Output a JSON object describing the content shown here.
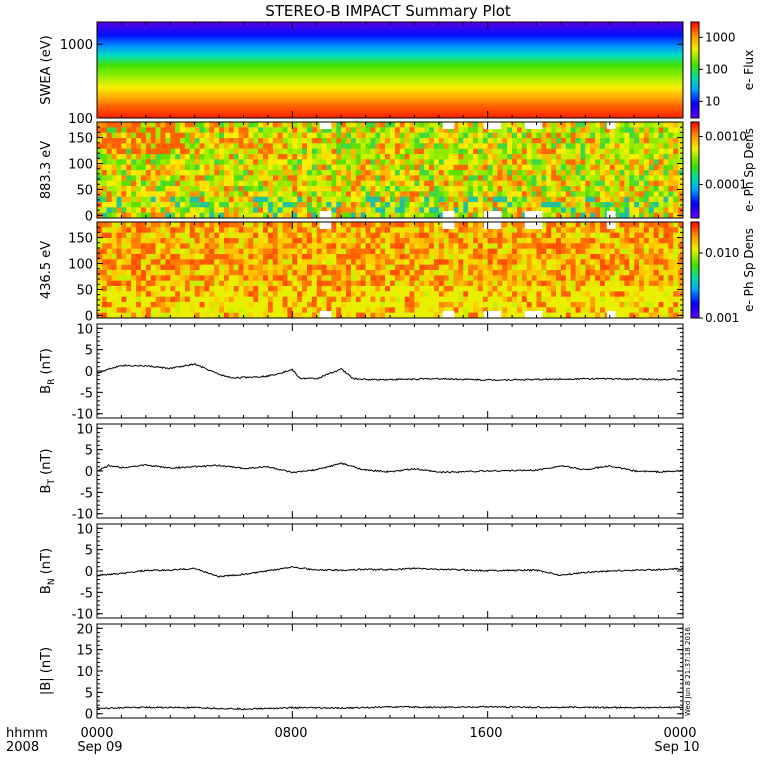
{
  "title": "STEREO-B IMPACT Summary Plot",
  "timestamp": "Wed Jun  8 21:37:18 2016",
  "footer": {
    "hhmm": "hhmm",
    "year": "2008",
    "xticks": [
      "0000",
      "0800",
      "1600",
      "0000"
    ],
    "dates": [
      "Sep 09",
      "Sep 10"
    ]
  },
  "chart_data": [
    {
      "type": "heatmap",
      "ylabel": "SWEA (eV)",
      "yscale": "log",
      "ylim": [
        100,
        2000
      ],
      "yticks": [
        "1000",
        "100"
      ],
      "colorbar": {
        "label": "e- Flux",
        "scale": "log",
        "range": [
          3,
          3000
        ],
        "ticks": [
          "1000",
          "100",
          "10"
        ]
      }
    },
    {
      "type": "heatmap",
      "ylabel": "883.3 eV",
      "ylim": [
        -5,
        180
      ],
      "yticks": [
        "150",
        "100",
        "50",
        "0"
      ],
      "colorbar": {
        "label": "e- Ph Sp Dens",
        "scale": "log",
        "range": [
          2e-05,
          0.002
        ],
        "ticks": [
          "0.0010",
          "0.0001"
        ]
      }
    },
    {
      "type": "heatmap",
      "ylabel": "436.5 eV",
      "ylim": [
        -5,
        180
      ],
      "yticks": [
        "150",
        "100",
        "50",
        "0"
      ],
      "colorbar": {
        "label": "e- Ph Sp Dens",
        "scale": "log",
        "range": [
          0.001,
          0.03
        ],
        "ticks": [
          "0.010",
          "0.001"
        ]
      }
    },
    {
      "type": "line",
      "ylabel": "B_R (nT)",
      "ylim": [
        -11,
        11
      ],
      "yticks": [
        "10",
        "5",
        "0",
        "-5",
        "-10"
      ],
      "x_hours": [
        0,
        0.5,
        1,
        2,
        3,
        4,
        5,
        5.5,
        6,
        7,
        8,
        8.3,
        9,
        10,
        10.5,
        11,
        12,
        14,
        16,
        18,
        20,
        22,
        24
      ],
      "y": [
        -0.5,
        0.5,
        1.3,
        1.2,
        0.6,
        1.6,
        -0.8,
        -1.6,
        -1.5,
        -1.2,
        0.3,
        -1.7,
        -1.8,
        0.5,
        -1.8,
        -2.0,
        -2.0,
        -1.8,
        -2.1,
        -2.0,
        -1.8,
        -1.9,
        -2.0
      ]
    },
    {
      "type": "line",
      "ylabel": "B_T (nT)",
      "ylim": [
        -11,
        11
      ],
      "yticks": [
        "10",
        "5",
        "0",
        "-5",
        "-10"
      ],
      "x_hours": [
        0,
        0.5,
        1,
        2,
        3,
        4,
        5,
        6,
        7,
        8,
        9,
        10,
        11,
        12,
        13,
        14,
        16,
        18,
        19,
        20,
        21,
        22,
        23,
        24
      ],
      "y": [
        0,
        1.3,
        0.8,
        1.4,
        0.7,
        1.0,
        1.3,
        0.6,
        1.0,
        -0.4,
        0.3,
        1.8,
        0.2,
        -0.2,
        0.5,
        -0.3,
        0.0,
        0.2,
        1.2,
        0.3,
        1.2,
        0.0,
        -0.2,
        0.0
      ]
    },
    {
      "type": "line",
      "ylabel": "B_N (nT)",
      "ylim": [
        -11,
        11
      ],
      "yticks": [
        "10",
        "5",
        "0",
        "-5",
        "-10"
      ],
      "x_hours": [
        0,
        1,
        2,
        3,
        4,
        5,
        6,
        7,
        8,
        9,
        10,
        11,
        12,
        13,
        14,
        16,
        18,
        19,
        20,
        21,
        22,
        23,
        24
      ],
      "y": [
        -1.0,
        -0.6,
        0.1,
        0.2,
        0.6,
        -1.3,
        -0.8,
        0.0,
        1.0,
        0.2,
        0.2,
        0.4,
        0.3,
        0.6,
        0.4,
        0.1,
        0.2,
        -1.0,
        -0.3,
        0.0,
        0.2,
        0.3,
        0.5
      ]
    },
    {
      "type": "line",
      "ylabel": "|B| (nT)",
      "ylim": [
        -1,
        21
      ],
      "yticks": [
        "20",
        "15",
        "10",
        "5",
        "0"
      ],
      "x_hours": [
        0,
        2,
        4,
        6,
        8,
        10,
        12,
        14,
        16,
        18,
        20,
        22,
        24
      ],
      "y": [
        1.3,
        1.5,
        1.4,
        1.1,
        1.4,
        1.3,
        1.6,
        1.5,
        1.6,
        1.5,
        1.5,
        1.4,
        1.5
      ]
    }
  ]
}
